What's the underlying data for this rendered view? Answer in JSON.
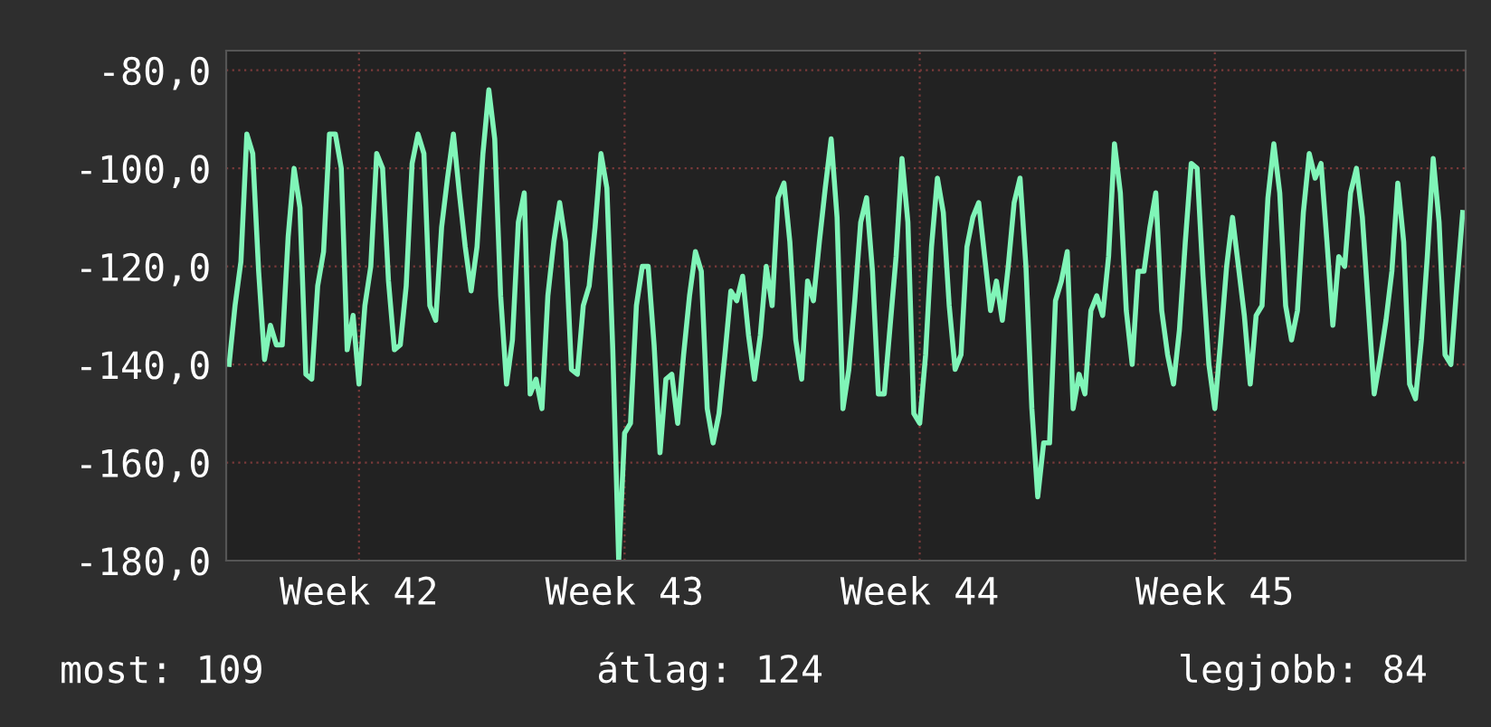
{
  "chart_data": {
    "type": "line",
    "categories": [
      null,
      null,
      null,
      null,
      null,
      null,
      null,
      null,
      null,
      null,
      null,
      null,
      null,
      null,
      null,
      null,
      null,
      null,
      null,
      null,
      null,
      null,
      "Week 42",
      null,
      null,
      null,
      null,
      null,
      null,
      null,
      null,
      null,
      null,
      null,
      null,
      null,
      null,
      null,
      null,
      null,
      null,
      null,
      null,
      null,
      null,
      null,
      null,
      null,
      null,
      null,
      null,
      null,
      null,
      null,
      null,
      null,
      null,
      null,
      null,
      null,
      null,
      null,
      null,
      null,
      null,
      null,
      null,
      "Week 43",
      null,
      null,
      null,
      null,
      null,
      null,
      null,
      null,
      null,
      null,
      null,
      null,
      null,
      null,
      null,
      null,
      null,
      null,
      null,
      null,
      null,
      null,
      null,
      null,
      null,
      null,
      null,
      null,
      null,
      null,
      null,
      null,
      null,
      null,
      null,
      null,
      null,
      null,
      null,
      null,
      null,
      null,
      null,
      null,
      null,
      null,
      null,
      null,
      null,
      "Week 44",
      null,
      null,
      null,
      null,
      null,
      null,
      null,
      null,
      null,
      null,
      null,
      null,
      null,
      null,
      null,
      null,
      null,
      null,
      null,
      null,
      null,
      null,
      null,
      null,
      null,
      null,
      null,
      null,
      null,
      null,
      null,
      null,
      null,
      null,
      null,
      null,
      null,
      null,
      null,
      null,
      null,
      null,
      null,
      null,
      null,
      null,
      null,
      null,
      null,
      "Week 45",
      null,
      null,
      null,
      null,
      null,
      null,
      null,
      null,
      null,
      null,
      null,
      null,
      null,
      null,
      null,
      null,
      null,
      null,
      null,
      null,
      null,
      null,
      null,
      null,
      null,
      null,
      null,
      null,
      null,
      null,
      null,
      null,
      null,
      null,
      null,
      null,
      null,
      null,
      null,
      null,
      null,
      null
    ],
    "series": [
      {
        "color": "#80f5b8",
        "values": [
          -140,
          -128,
          -119,
          -93,
          -97,
          -121,
          -139,
          -132,
          -136,
          -136,
          -114,
          -100,
          -108,
          -142,
          -143,
          -124,
          -117,
          -93,
          -93,
          -100,
          -137,
          -130,
          -144,
          -128,
          -120,
          -97,
          -100,
          -123,
          -137,
          -136,
          -124,
          -99,
          -93,
          -97,
          -128,
          -131,
          -112,
          -102,
          -93,
          -105,
          -116,
          -125,
          -116,
          -97,
          -84,
          -94,
          -126,
          -144,
          -135,
          -111,
          -105,
          -146,
          -143,
          -149,
          -126,
          -115,
          -107,
          -115,
          -141,
          -142,
          -128,
          -124,
          -112,
          -97,
          -104,
          -137,
          -180,
          -154,
          -152,
          -128,
          -120,
          -120,
          -136,
          -158,
          -143,
          -142,
          -152,
          -138,
          -126,
          -117,
          -121,
          -149,
          -156,
          -150,
          -138,
          -125,
          -127,
          -122,
          -134,
          -143,
          -134,
          -120,
          -128,
          -106,
          -103,
          -115,
          -135,
          -143,
          -123,
          -127,
          -115,
          -104,
          -94,
          -110,
          -149,
          -141,
          -127,
          -111,
          -106,
          -121,
          -146,
          -146,
          -132,
          -118,
          -98,
          -111,
          -150,
          -152,
          -138,
          -116,
          -102,
          -109,
          -128,
          -141,
          -138,
          -116,
          -110,
          -107,
          -118,
          -129,
          -123,
          -131,
          -120,
          -107,
          -102,
          -120,
          -149,
          -167,
          -156,
          -156,
          -127,
          -123,
          -117,
          -149,
          -142,
          -146,
          -129,
          -126,
          -130,
          -118,
          -95,
          -105,
          -129,
          -140,
          -121,
          -121,
          -112,
          -105,
          -129,
          -138,
          -144,
          -133,
          -115,
          -99,
          -100,
          -122,
          -140,
          -149,
          -135,
          -120,
          -110,
          -120,
          -130,
          -144,
          -130,
          -128,
          -106,
          -95,
          -105,
          -128,
          -135,
          -129,
          -109,
          -97,
          -102,
          -99,
          -115,
          -132,
          -118,
          -120,
          -105,
          -100,
          -110,
          -128,
          -146,
          -139,
          -131,
          -121,
          -103,
          -115,
          -144,
          -147,
          -135,
          -118,
          -98,
          -111,
          -138,
          -140,
          -124,
          -109
        ]
      }
    ],
    "ylim": [
      -180,
      -76
    ],
    "yticks": [
      {
        "value": -180,
        "label": "-180,0"
      },
      {
        "value": -160,
        "label": "-160,0"
      },
      {
        "value": -140,
        "label": "-140,0"
      },
      {
        "value": -120,
        "label": "-120,0"
      },
      {
        "value": -100,
        "label": "-100,0"
      },
      {
        "value": -80,
        "label": "-80,0"
      }
    ],
    "grid": true,
    "annotations": [
      "most: 109",
      "átlag: 124",
      "legjobb: 84"
    ]
  }
}
